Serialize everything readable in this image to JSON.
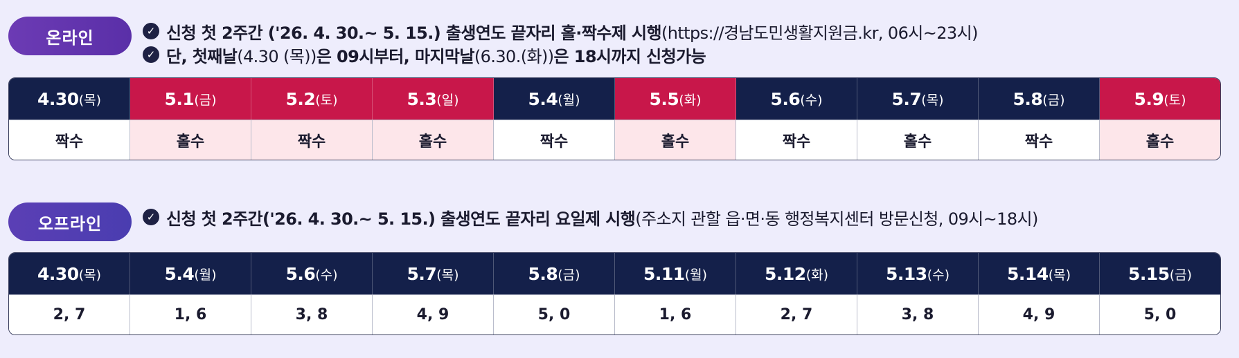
{
  "online": {
    "label": "온라인",
    "notes": [
      {
        "bold": "신청 첫 2주간 ('26. 4. 30.~ 5. 15.) 출생연도 끝자리 홀·짝수제 시행",
        "normal": "(https://경남도민생활지원금.kr, 06시~23시)"
      },
      {
        "bold": "단, 첫째날",
        "normal": "(4.30 (목))",
        "bold2": "은 09시부터, 마지막날",
        "normal2": "(6.30.(화))",
        "bold3": "은 18시까지 신청가능"
      }
    ],
    "columns": [
      {
        "date": "4.30",
        "day": "(목)",
        "value": "짝수",
        "weekend": false
      },
      {
        "date": "5.1",
        "day": "(금)",
        "value": "홀수",
        "weekend": true
      },
      {
        "date": "5.2",
        "day": "(토)",
        "value": "짝수",
        "weekend": true
      },
      {
        "date": "5.3",
        "day": "(일)",
        "value": "홀수",
        "weekend": true
      },
      {
        "date": "5.4",
        "day": "(월)",
        "value": "짝수",
        "weekend": false
      },
      {
        "date": "5.5",
        "day": "(화)",
        "value": "홀수",
        "weekend": true
      },
      {
        "date": "5.6",
        "day": "(수)",
        "value": "짝수",
        "weekend": false
      },
      {
        "date": "5.7",
        "day": "(목)",
        "value": "홀수",
        "weekend": false
      },
      {
        "date": "5.8",
        "day": "(금)",
        "value": "짝수",
        "weekend": false
      },
      {
        "date": "5.9",
        "day": "(토)",
        "value": "홀수",
        "weekend": true
      }
    ]
  },
  "offline": {
    "label": "오프라인",
    "notes": [
      {
        "bold": "신청 첫 2주간('26. 4. 30.~ 5. 15.) 출생연도 끝자리 요일제 시행",
        "normal": "(주소지 관할 읍·면·동 행정복지센터 방문신청, 09시~18시)"
      }
    ],
    "columns": [
      {
        "date": "4.30",
        "day": "(목)",
        "value": "2, 7"
      },
      {
        "date": "5.4",
        "day": "(월)",
        "value": "1, 6"
      },
      {
        "date": "5.6",
        "day": "(수)",
        "value": "3, 8"
      },
      {
        "date": "5.7",
        "day": "(목)",
        "value": "4, 9"
      },
      {
        "date": "5.8",
        "day": "(금)",
        "value": "5, 0"
      },
      {
        "date": "5.11",
        "day": "(월)",
        "value": "1, 6"
      },
      {
        "date": "5.12",
        "day": "(화)",
        "value": "2, 7"
      },
      {
        "date": "5.13",
        "day": "(수)",
        "value": "3, 8"
      },
      {
        "date": "5.14",
        "day": "(목)",
        "value": "4, 9"
      },
      {
        "date": "5.15",
        "day": " (금)",
        "value": "5, 0"
      }
    ]
  },
  "icons": {
    "check": "check-circle-icon"
  },
  "colors": {
    "navy": "#14204a",
    "red": "#c8174a",
    "pink": "#fde6ea"
  }
}
